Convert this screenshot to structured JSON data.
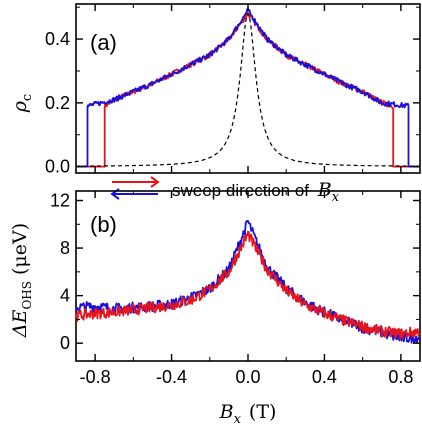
{
  "colors": {
    "red": "#e8141b",
    "blue": "#1c10d8",
    "dashed": "#000000"
  },
  "legend": {
    "text": "sweep direction of",
    "var": "B",
    "sub": "x"
  },
  "x_axis": {
    "label_var": "B",
    "label_sub": "x",
    "label_unit": "(T)"
  },
  "chart_data": [
    {
      "type": "line",
      "panel_label": "(a)",
      "ylabel_var": "ρ",
      "ylabel_sub": "c",
      "xlim": [
        -0.9,
        0.9
      ],
      "ylim": [
        -0.02,
        0.51
      ],
      "x_ticks": [
        -0.8,
        -0.4,
        0.0,
        0.4,
        0.8
      ],
      "y_ticks": [
        0.0,
        0.2,
        0.4
      ],
      "y_tick_labels": [
        "0.0",
        "0.2",
        "0.4"
      ],
      "series": [
        {
          "color": "red",
          "style": "solid",
          "x": [
            -0.9,
            -0.75,
            -0.75,
            -0.7,
            -0.6,
            -0.5,
            -0.4,
            -0.3,
            -0.2,
            -0.1,
            0.0,
            0.1,
            0.2,
            0.3,
            0.4,
            0.5,
            0.6,
            0.7,
            0.76,
            0.76,
            0.9
          ],
          "y": [
            0.0,
            0.0,
            0.19,
            0.21,
            0.235,
            0.26,
            0.29,
            0.32,
            0.35,
            0.4,
            0.48,
            0.4,
            0.35,
            0.32,
            0.29,
            0.26,
            0.235,
            0.2,
            0.19,
            0.0,
            0.0
          ]
        },
        {
          "color": "blue",
          "style": "solid",
          "x": [
            -0.9,
            -0.84,
            -0.84,
            -0.7,
            -0.6,
            -0.5,
            -0.4,
            -0.3,
            -0.2,
            -0.1,
            0.0,
            0.1,
            0.2,
            0.3,
            0.4,
            0.5,
            0.6,
            0.7,
            0.84,
            0.84,
            0.9
          ],
          "y": [
            0.0,
            0.0,
            0.19,
            0.21,
            0.235,
            0.26,
            0.29,
            0.32,
            0.35,
            0.4,
            0.49,
            0.4,
            0.35,
            0.32,
            0.29,
            0.26,
            0.235,
            0.2,
            0.19,
            0.0,
            0.0
          ]
        },
        {
          "color": "dashed",
          "style": "dashed",
          "lorentz": {
            "peak": 0.48,
            "width": 0.05
          }
        }
      ]
    },
    {
      "type": "line",
      "panel_label": "(b)",
      "ylabel_var": "ΔE",
      "ylabel_sub": "OHS",
      "ylabel_unit": "(μeV)",
      "xlim": [
        -0.9,
        0.9
      ],
      "ylim": [
        -1.5,
        12.8
      ],
      "x_ticks": [
        -0.8,
        -0.4,
        0.0,
        0.4,
        0.8
      ],
      "x_tick_labels": [
        "-0.8",
        "-0.4",
        "0.0",
        "0.4",
        "0.8"
      ],
      "y_ticks": [
        0,
        4,
        8,
        12
      ],
      "y_tick_labels": [
        "0",
        "4",
        "8",
        "12"
      ],
      "series": [
        {
          "color": "blue",
          "x": [
            -0.9,
            -0.8,
            -0.7,
            -0.6,
            -0.5,
            -0.4,
            -0.3,
            -0.2,
            -0.1,
            0.0,
            0.1,
            0.2,
            0.3,
            0.4,
            0.5,
            0.6,
            0.7,
            0.8,
            0.9
          ],
          "y": [
            3.0,
            3.1,
            2.9,
            3.0,
            3.1,
            3.3,
            3.8,
            4.6,
            6.2,
            10.2,
            6.4,
            4.6,
            3.4,
            2.6,
            1.9,
            1.3,
            0.9,
            0.4,
            0.5
          ]
        },
        {
          "color": "red",
          "x": [
            -0.9,
            -0.8,
            -0.7,
            -0.6,
            -0.5,
            -0.4,
            -0.3,
            -0.2,
            -0.1,
            0.0,
            0.1,
            0.2,
            0.3,
            0.4,
            0.5,
            0.6,
            0.7,
            0.8,
            0.9
          ],
          "y": [
            2.3,
            2.5,
            2.6,
            2.8,
            3.0,
            3.2,
            3.6,
            4.5,
            6.0,
            9.2,
            6.2,
            4.4,
            3.2,
            2.5,
            1.9,
            1.4,
            1.0,
            0.8,
            1.0
          ]
        }
      ]
    }
  ]
}
